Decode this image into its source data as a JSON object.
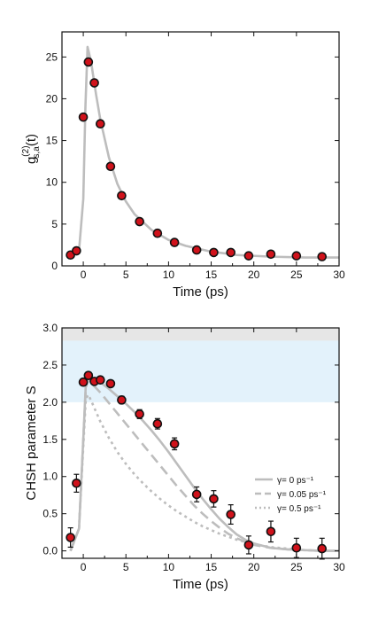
{
  "chart_data": [
    {
      "type": "scatter",
      "xlabel": "Time (ps)",
      "ylabel_parts": {
        "base": "g",
        "sup": "(2)",
        "sub": "s,a",
        "arg": "(t)"
      },
      "xlim": [
        -2.5,
        30
      ],
      "ylim": [
        0,
        28
      ],
      "xticks": [
        0,
        5,
        10,
        15,
        20,
        25,
        30
      ],
      "yticks": [
        0,
        5,
        10,
        15,
        20,
        25
      ],
      "series": [
        {
          "kind": "points",
          "marker_color": "#d0121b",
          "x": [
            -1.5,
            -0.8,
            0.0,
            0.6,
            1.3,
            2.0,
            3.2,
            4.5,
            6.6,
            8.7,
            10.7,
            13.3,
            15.3,
            17.3,
            19.4,
            22.0,
            25.0,
            28.0
          ],
          "y": [
            1.3,
            1.8,
            17.8,
            24.4,
            21.9,
            17.0,
            11.9,
            8.4,
            5.3,
            3.9,
            2.8,
            1.9,
            1.6,
            1.6,
            1.2,
            1.4,
            1.2,
            1.1
          ]
        },
        {
          "kind": "line",
          "line_color": "#bdbdbd",
          "x": [
            -1.5,
            -0.5,
            0.0,
            0.25,
            0.5,
            0.9,
            1.5,
            2.0,
            3.0,
            4.0,
            5.0,
            6.0,
            8.0,
            10.0,
            12.0,
            15.0,
            18.0,
            22.0,
            26.0,
            30.0
          ],
          "y": [
            1.0,
            1.8,
            8.0,
            19.0,
            26.2,
            24.5,
            20.5,
            17.5,
            13.0,
            9.8,
            7.7,
            6.2,
            4.3,
            3.1,
            2.4,
            1.7,
            1.3,
            1.1,
            1.0,
            1.0
          ]
        }
      ]
    },
    {
      "type": "scatter",
      "xlabel": "Time (ps)",
      "ylabel": "CHSH parameter S",
      "xlim": [
        -2.5,
        30
      ],
      "ylim": [
        -0.1,
        3.0
      ],
      "xticks": [
        0,
        5,
        10,
        15,
        20,
        25,
        30
      ],
      "yticks": [
        "0.0",
        "0.5",
        "1.0",
        "1.5",
        "2.0",
        "2.5",
        "3.0"
      ],
      "bands": [
        {
          "y": [
            2.0,
            2.828
          ],
          "color": "#e3f2fb"
        },
        {
          "y": [
            2.828,
            3.0
          ],
          "color": "#e6e6e6"
        }
      ],
      "series": [
        {
          "kind": "points",
          "marker_color": "#d0121b",
          "x": [
            -1.5,
            -0.8,
            0.0,
            0.6,
            1.3,
            2.0,
            3.2,
            4.5,
            6.6,
            8.7,
            10.7,
            13.3,
            15.3,
            17.3,
            19.4,
            22.0,
            25.0,
            28.0
          ],
          "y": [
            0.18,
            0.91,
            2.27,
            2.36,
            2.28,
            2.3,
            2.25,
            2.03,
            1.84,
            1.71,
            1.44,
            0.76,
            0.7,
            0.49,
            0.08,
            0.26,
            0.04,
            0.03
          ],
          "err": [
            0.13,
            0.12,
            0.04,
            0.04,
            0.04,
            0.04,
            0.04,
            0.05,
            0.06,
            0.07,
            0.08,
            0.1,
            0.11,
            0.13,
            0.12,
            0.14,
            0.13,
            0.14
          ]
        },
        {
          "kind": "line",
          "name": "γ= 0 ps⁻¹",
          "dash": "solid",
          "line_color": "#bdbdbd",
          "x": [
            -1.5,
            -0.5,
            0.0,
            0.3,
            0.6,
            1.0,
            2.0,
            3.0,
            4.0,
            5.0,
            6.0,
            7.0,
            8.0,
            9.0,
            10.0,
            11.0,
            12.0,
            13.0,
            14.0,
            15.0,
            16.0,
            17.0,
            18.0,
            19.0,
            20.0,
            22.0,
            24.0,
            26.0,
            28.0,
            30.0
          ],
          "y": [
            0.0,
            0.3,
            1.5,
            2.25,
            2.35,
            2.33,
            2.27,
            2.18,
            2.08,
            1.98,
            1.87,
            1.75,
            1.62,
            1.48,
            1.33,
            1.17,
            1.01,
            0.85,
            0.7,
            0.56,
            0.43,
            0.32,
            0.22,
            0.15,
            0.1,
            0.04,
            0.02,
            0.01,
            0.0,
            0.0
          ]
        },
        {
          "kind": "line",
          "name": "γ= 0.05 ps⁻¹",
          "dash": "dashed",
          "line_color": "#bdbdbd",
          "x": [
            -1.5,
            -0.5,
            0.0,
            0.3,
            0.6,
            1.0,
            2.0,
            3.0,
            4.0,
            5.0,
            6.0,
            7.0,
            8.0,
            9.0,
            10.0,
            11.0,
            12.0,
            13.0,
            14.0,
            15.0,
            16.0,
            17.0,
            18.0,
            19.0,
            20.0,
            22.0,
            24.0,
            26.0,
            28.0,
            30.0
          ],
          "y": [
            0.0,
            0.3,
            1.5,
            2.2,
            2.3,
            2.25,
            2.13,
            1.99,
            1.85,
            1.71,
            1.57,
            1.43,
            1.29,
            1.15,
            1.01,
            0.87,
            0.74,
            0.61,
            0.5,
            0.4,
            0.31,
            0.23,
            0.17,
            0.12,
            0.08,
            0.04,
            0.02,
            0.01,
            0.0,
            0.0
          ]
        },
        {
          "kind": "line",
          "name": "γ= 0.5 ps⁻¹",
          "dash": "dotted",
          "line_color": "#bdbdbd",
          "x": [
            -1.5,
            -0.5,
            0.0,
            0.3,
            0.6,
            1.0,
            2.0,
            3.0,
            4.0,
            5.0,
            6.0,
            7.0,
            8.0,
            9.0,
            10.0,
            11.0,
            12.0,
            13.0,
            14.0,
            15.0,
            16.0,
            17.0,
            18.0,
            19.0,
            20.0,
            22.0,
            24.0,
            26.0,
            28.0,
            30.0
          ],
          "y": [
            0.0,
            0.3,
            1.4,
            2.05,
            2.1,
            2.0,
            1.74,
            1.52,
            1.33,
            1.17,
            1.03,
            0.91,
            0.8,
            0.7,
            0.61,
            0.53,
            0.46,
            0.39,
            0.33,
            0.28,
            0.23,
            0.19,
            0.15,
            0.12,
            0.09,
            0.05,
            0.03,
            0.01,
            0.0,
            0.0
          ]
        }
      ],
      "legend": "bottom-right"
    }
  ]
}
